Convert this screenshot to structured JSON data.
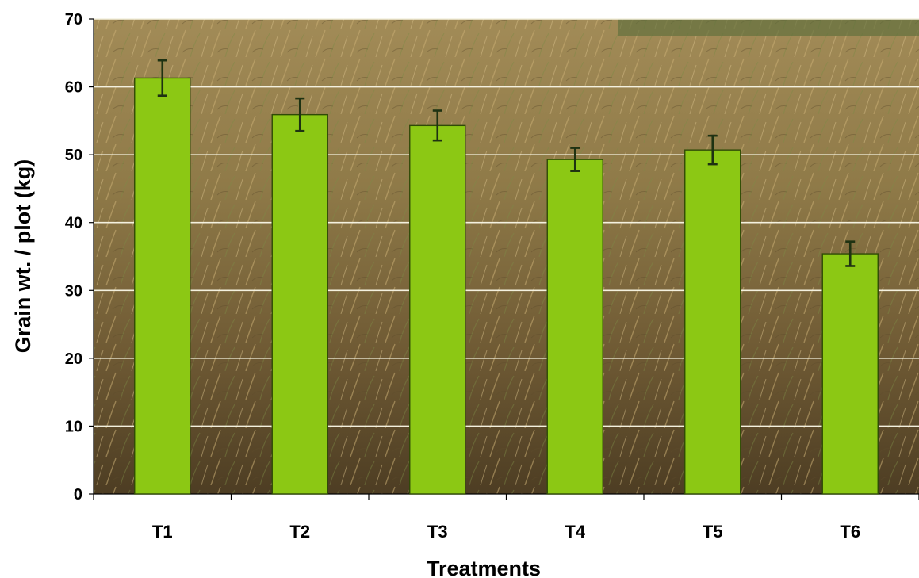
{
  "chart_data": {
    "type": "bar",
    "title": "",
    "xlabel": "Treatments",
    "ylabel": "Grain wt. / plot (kg)",
    "categories": [
      "T1",
      "T2",
      "T3",
      "T4",
      "T5",
      "T6"
    ],
    "values": [
      61.3,
      55.9,
      54.3,
      49.3,
      50.7,
      35.4
    ],
    "error": [
      2.6,
      2.4,
      2.2,
      1.7,
      2.1,
      1.8
    ],
    "ylim": [
      0,
      70
    ],
    "yticks": [
      0,
      10,
      20,
      30,
      40,
      50,
      60,
      70
    ],
    "grid": true,
    "legend": "none",
    "background": "photograph of ripe rice crop field",
    "colors": {
      "bar_fill": "#8cc814",
      "bar_stroke": "#2f4a06",
      "error_bar": "#1e3212",
      "gridline": "#f4f1df",
      "axis": "#000000"
    }
  }
}
